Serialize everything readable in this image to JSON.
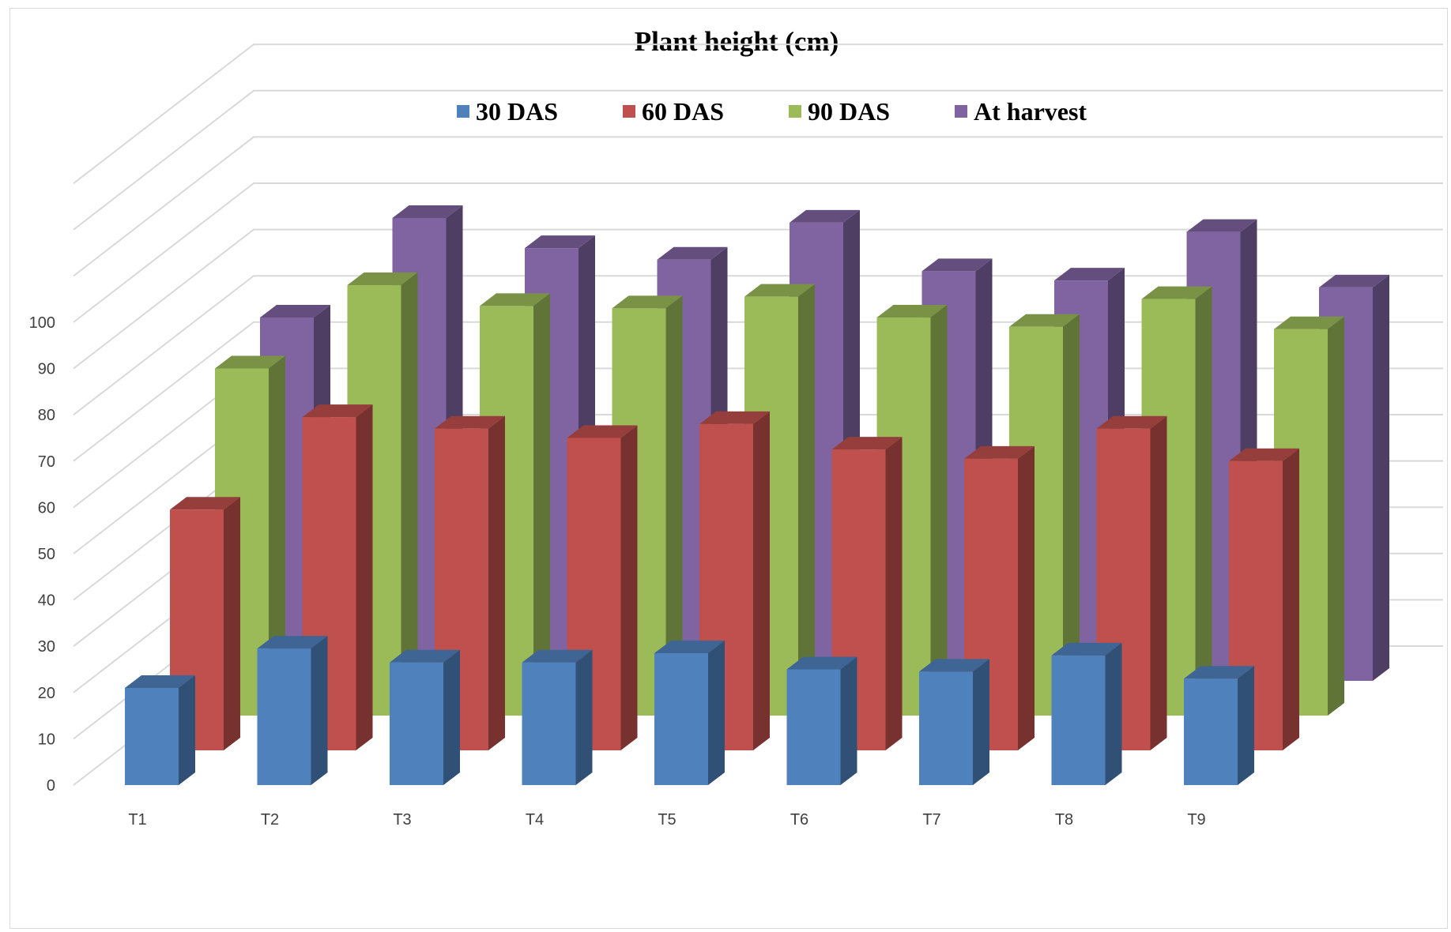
{
  "chart_data": {
    "type": "bar",
    "title": "Plant height (cm)",
    "xlabel": "",
    "ylabel": "",
    "categories": [
      "T1",
      "T2",
      "T3",
      "T4",
      "T5",
      "T6",
      "T7",
      "T8",
      "T9"
    ],
    "yticks": [
      "0",
      "10",
      "20",
      "30",
      "40",
      "50",
      "60",
      "70",
      "80",
      "90",
      "100"
    ],
    "ylim": [
      0,
      100
    ],
    "grid": true,
    "legend_position": "top",
    "series": [
      {
        "name": "30 DAS",
        "color": "#4f81bd",
        "values": [
          21,
          29.5,
          26.5,
          26.5,
          28.5,
          25,
          24.5,
          28,
          23
        ]
      },
      {
        "name": "60 DAS",
        "color": "#c0504d",
        "values": [
          52,
          72,
          69.5,
          67.5,
          70.5,
          65,
          63,
          69.5,
          62.5
        ]
      },
      {
        "name": "90 DAS",
        "color": "#9bbb59",
        "values": [
          75,
          93,
          88.5,
          88,
          90.5,
          86,
          84,
          90,
          83.5
        ]
      },
      {
        "name": "At harvest",
        "color": "#8064a2",
        "values": [
          78.5,
          100,
          93.5,
          91,
          99,
          88.5,
          86.5,
          97,
          85
        ]
      }
    ]
  }
}
